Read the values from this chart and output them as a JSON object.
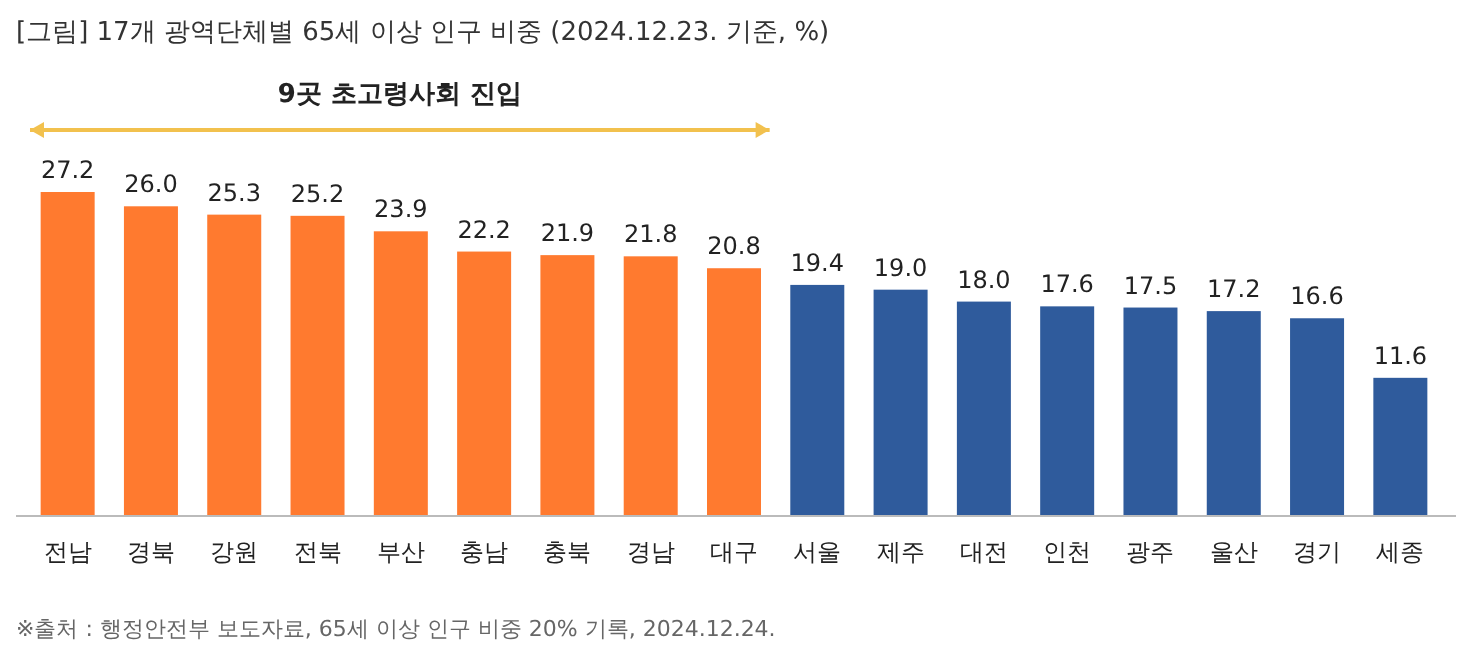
{
  "chart_data": {
    "type": "bar",
    "title": "[그림] 17개 광역단체별 65세 이상 인구 비중 (2024.12.23. 기준, %)",
    "categories": [
      "전남",
      "경북",
      "강원",
      "전북",
      "부산",
      "충남",
      "충북",
      "경남",
      "대구",
      "서울",
      "제주",
      "대전",
      "인천",
      "광주",
      "울산",
      "경기",
      "세종"
    ],
    "values": [
      27.2,
      26.0,
      25.3,
      25.2,
      23.9,
      22.2,
      21.9,
      21.8,
      20.8,
      19.4,
      19.0,
      18.0,
      17.6,
      17.5,
      17.2,
      16.6,
      11.6
    ],
    "colors": [
      "#ff7a2f",
      "#ff7a2f",
      "#ff7a2f",
      "#ff7a2f",
      "#ff7a2f",
      "#ff7a2f",
      "#ff7a2f",
      "#ff7a2f",
      "#ff7a2f",
      "#2f5b9c",
      "#2f5b9c",
      "#2f5b9c",
      "#2f5b9c",
      "#2f5b9c",
      "#2f5b9c",
      "#2f5b9c",
      "#2f5b9c"
    ],
    "value_labels": [
      "27.2",
      "26.0",
      "25.3",
      "25.2",
      "23.9",
      "22.2",
      "21.9",
      "21.8",
      "20.8",
      "19.4",
      "19.0",
      "18.0",
      "17.6",
      "17.5",
      "17.2",
      "16.6",
      "11.6"
    ],
    "annotations": [
      "9곳 초고령사회 진입",
      "※출처 : 행정안전부 보도자료, 65세 이상 인구 비중 20% 기록, 2024.12.24."
    ]
  }
}
